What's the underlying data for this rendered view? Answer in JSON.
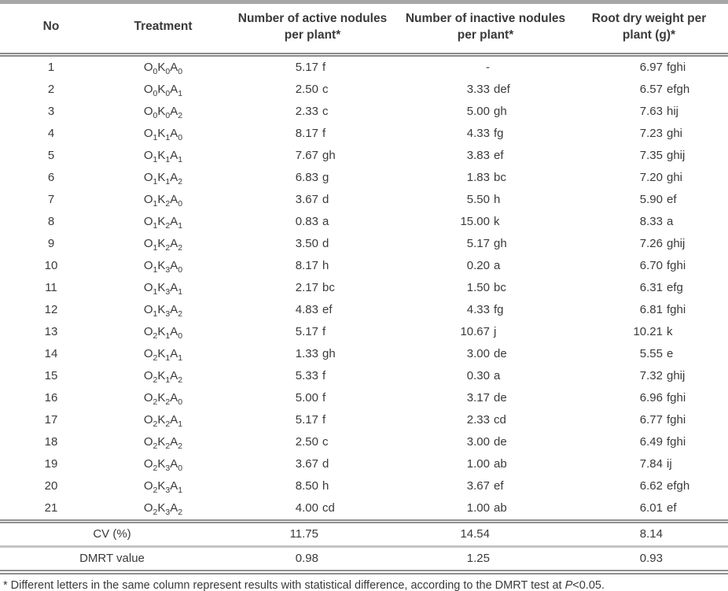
{
  "table": {
    "columns": [
      {
        "key": "no",
        "lines": [
          "No"
        ]
      },
      {
        "key": "treatment",
        "lines": [
          "Treatment"
        ]
      },
      {
        "key": "active",
        "lines": [
          "Number of active nodules",
          "per plant*"
        ]
      },
      {
        "key": "inactive",
        "lines": [
          "Number of inactive nodules",
          "per plant*"
        ]
      },
      {
        "key": "root",
        "lines": [
          "Root dry weight per",
          "plant (g)*"
        ]
      }
    ],
    "rows": [
      {
        "no": "1",
        "treatment": "O0K0A0",
        "active": "5.17 f",
        "inactive": "-",
        "root": "6.97 fghi"
      },
      {
        "no": "2",
        "treatment": "O0K0A1",
        "active": "2.50 c",
        "inactive": "3.33 def",
        "root": "6.57 efgh"
      },
      {
        "no": "3",
        "treatment": "O0K0A2",
        "active": "2.33 c",
        "inactive": "5.00 gh",
        "root": "7.63 hij"
      },
      {
        "no": "4",
        "treatment": "O1K1A0",
        "active": "8.17 f",
        "inactive": "4.33 fg",
        "root": "7.23 ghi"
      },
      {
        "no": "5",
        "treatment": "O1K1A1",
        "active": "7.67 gh",
        "inactive": "3.83 ef",
        "root": "7.35 ghij"
      },
      {
        "no": "6",
        "treatment": "O1K1A2",
        "active": "6.83 g",
        "inactive": "1.83 bc",
        "root": "7.20 ghi"
      },
      {
        "no": "7",
        "treatment": "O1K2A0",
        "active": "3.67 d",
        "inactive": "5.50 h",
        "root": "5.90 ef"
      },
      {
        "no": "8",
        "treatment": "O1K2A1",
        "active": "0.83 a",
        "inactive": "15.00 k",
        "root": "8.33 a"
      },
      {
        "no": "9",
        "treatment": "O1K2A2",
        "active": "3.50 d",
        "inactive": "5.17 gh",
        "root": "7.26 ghij"
      },
      {
        "no": "10",
        "treatment": "O1K3A0",
        "active": "8.17 h",
        "inactive": "0.20 a",
        "root": "6.70 fghi"
      },
      {
        "no": "11",
        "treatment": "O1K3A1",
        "active": "2.17 bc",
        "inactive": "1.50 bc",
        "root": "6.31 efg"
      },
      {
        "no": "12",
        "treatment": "O1K3A2",
        "active": "4.83 ef",
        "inactive": "4.33 fg",
        "root": "6.81 fghi"
      },
      {
        "no": "13",
        "treatment": "O2K1A0",
        "active": "5.17 f",
        "inactive": "10.67 j",
        "root": "10.21 k"
      },
      {
        "no": "14",
        "treatment": "O2K1A1",
        "active": "1.33 gh",
        "inactive": "3.00 de",
        "root": "5.55 e"
      },
      {
        "no": "15",
        "treatment": "O2K1A2",
        "active": "5.33 f",
        "inactive": "0.30 a",
        "root": "7.32 ghij"
      },
      {
        "no": "16",
        "treatment": "O2K2A0",
        "active": "5.00 f",
        "inactive": "3.17 de",
        "root": "6.96 fghi"
      },
      {
        "no": "17",
        "treatment": "O2K2A1",
        "active": "5.17 f",
        "inactive": "2.33 cd",
        "root": "6.77 fghi"
      },
      {
        "no": "18",
        "treatment": "O2K2A2",
        "active": "2.50 c",
        "inactive": "3.00 de",
        "root": "6.49 fghi"
      },
      {
        "no": "19",
        "treatment": "O2K3A0",
        "active": "3.67 d",
        "inactive": "1.00 ab",
        "root": "7.84 ij"
      },
      {
        "no": "20",
        "treatment": "O2K3A1",
        "active": "8.50 h",
        "inactive": "3.67 ef",
        "root": "6.62 efgh"
      },
      {
        "no": "21",
        "treatment": "O2K3A2",
        "active": "4.00 cd",
        "inactive": "1.00 ab",
        "root": "6.01 ef"
      }
    ],
    "summary": [
      {
        "key": "cv",
        "label": "CV (%)",
        "active": "11.75",
        "inactive": "14.54",
        "root": "8.14"
      },
      {
        "key": "dmrt",
        "label": "DMRT value",
        "active": "0.98",
        "inactive": "1.25",
        "root": "0.93"
      }
    ],
    "footnote": {
      "before_p": "* Different letters in the same column represent results with statistical difference, according to the DMRT test at ",
      "p": "P",
      "after_p": "<0.05."
    }
  }
}
